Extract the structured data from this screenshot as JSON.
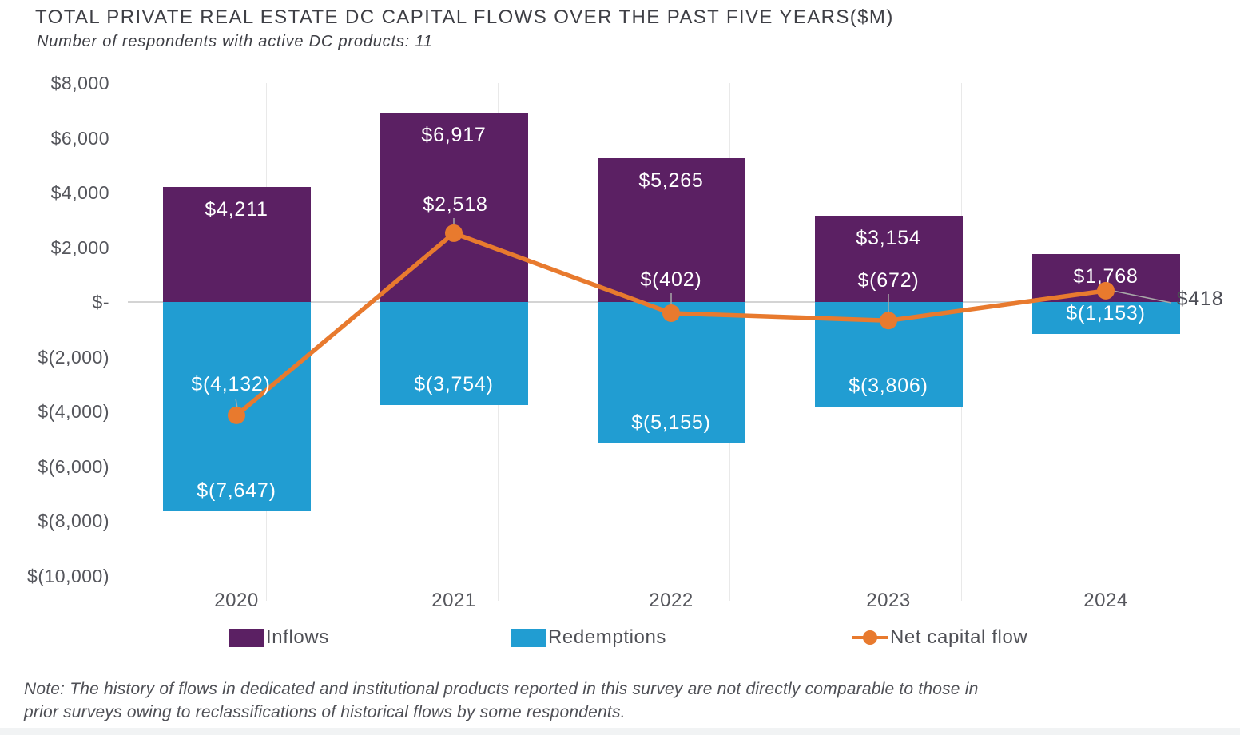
{
  "header": {
    "title": "TOTAL PRIVATE REAL ESTATE DC CAPITAL FLOWS OVER THE PAST FIVE YEARS($M)",
    "subtitle": "Number of respondents with active DC products: 11"
  },
  "colors": {
    "inflows": "#5b2063",
    "redemptions": "#219dd2",
    "net": "#e87a2e",
    "bar_label_text": "#ffffff",
    "net_outside_label_text": "#4d4e56",
    "axis_text": "#55565c",
    "title_text": "#3e3f45",
    "note_text": "#4f5056",
    "zero_line": "#d4d4d4",
    "grid_faint": "#e9e9e9",
    "leader_line": "#a8a8a8"
  },
  "chart_data": {
    "type": "combo (stacked bar + line)",
    "title": "TOTAL PRIVATE REAL ESTATE DC CAPITAL FLOWS OVER THE PAST FIVE YEARS($M)",
    "subtitle": "Number of respondents with active DC products: 11",
    "categories": [
      "2020",
      "2021",
      "2022",
      "2023",
      "2024"
    ],
    "series": [
      {
        "name": "Inflows",
        "type": "bar",
        "color_key": "inflows",
        "values": [
          4211,
          6917,
          5265,
          3154,
          1768
        ],
        "labels": [
          "$4,211",
          "$6,917",
          "$5,265",
          "$3,154",
          "$1,768"
        ]
      },
      {
        "name": "Redemptions",
        "type": "bar",
        "color_key": "redemptions",
        "values": [
          -7647,
          -3754,
          -5155,
          -3806,
          -1153
        ],
        "labels": [
          "$(7,647)",
          "$(3,754)",
          "$(5,155)",
          "$(3,806)",
          "$(1,153)"
        ]
      },
      {
        "name": "Net capital flow",
        "type": "line",
        "color_key": "net",
        "values": [
          -4132,
          2518,
          -402,
          -672,
          418
        ],
        "labels": [
          "$(4,132)",
          "$2,518",
          "$(402)",
          "$(672)",
          "$418"
        ]
      }
    ],
    "y_ticks": [
      {
        "label": "$8,000",
        "value": 8000
      },
      {
        "label": "$6,000",
        "value": 6000
      },
      {
        "label": "$4,000",
        "value": 4000
      },
      {
        "label": "$2,000",
        "value": 2000
      },
      {
        "label": "$-",
        "value": 0
      },
      {
        "label": "$(2,000)",
        "value": -2000
      },
      {
        "label": "$(4,000)",
        "value": -4000
      },
      {
        "label": "$(6,000)",
        "value": -6000
      },
      {
        "label": "$(8,000)",
        "value": -8000
      },
      {
        "label": "$(10,000)",
        "value": -10000
      }
    ],
    "ylim": [
      -10000,
      8000
    ],
    "grid": "zero line only, faint vertical guides",
    "legend_position": "bottom"
  },
  "legend": {
    "inflows": "Inflows",
    "redemptions": "Redemptions",
    "net": "Net capital flow"
  },
  "note": "Note: The history of flows in dedicated and institutional products reported in this survey are not directly comparable to those in prior surveys owing to reclassifications of historical flows by some respondents."
}
